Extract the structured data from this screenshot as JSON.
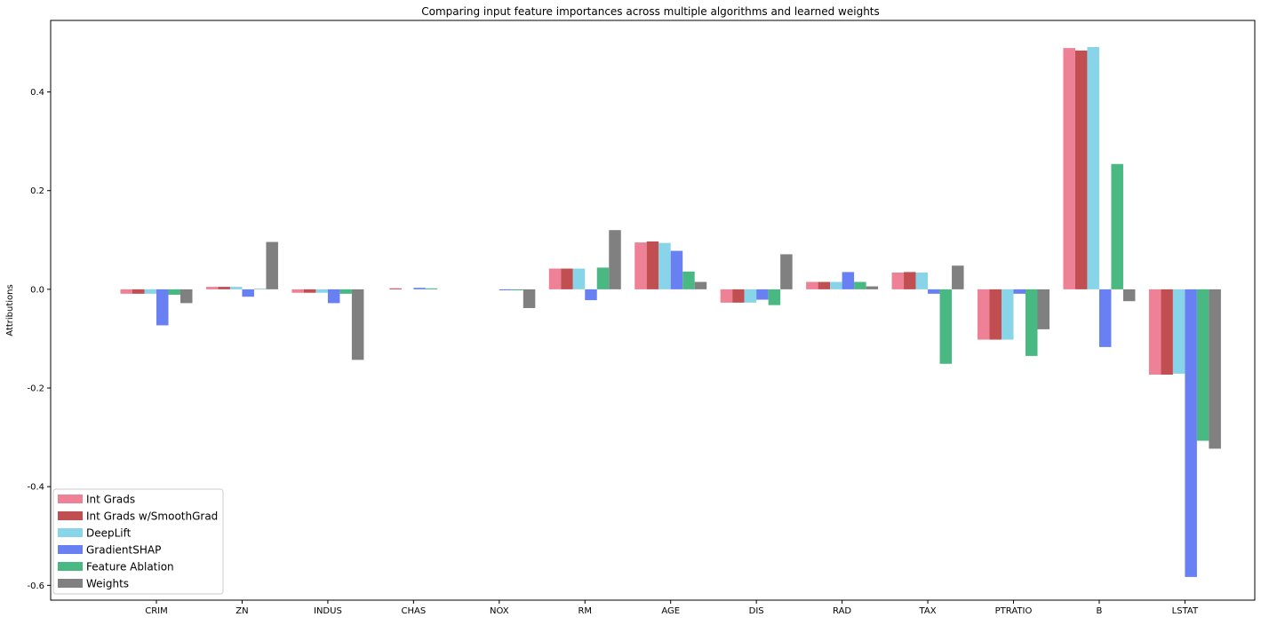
{
  "chart_data": {
    "type": "bar",
    "title": "Comparing input feature importances across multiple algorithms and learned weights",
    "xlabel": "",
    "ylabel": "Attributions",
    "ylim": [
      -0.63,
      0.545
    ],
    "yticks": [
      -0.6,
      -0.4,
      -0.2,
      0.0,
      0.2,
      0.4
    ],
    "ytick_labels": [
      "-0.6",
      "-0.4",
      "-0.2",
      "0.0",
      "0.2",
      "0.4"
    ],
    "categories": [
      "CRIM",
      "ZN",
      "INDUS",
      "CHAS",
      "NOX",
      "RM",
      "AGE",
      "DIS",
      "RAD",
      "TAX",
      "PTRATIO",
      "B",
      "LSTAT"
    ],
    "legend_position": "lower-left",
    "grid": false,
    "series": [
      {
        "name": "Int Grads",
        "color": "#ee8195",
        "values": [
          -0.009,
          0.005,
          -0.007,
          0.0,
          0.0,
          0.042,
          0.095,
          -0.027,
          0.015,
          0.034,
          -0.102,
          0.489,
          -0.173
        ]
      },
      {
        "name": "Int Grads w/SmoothGrad",
        "color": "#c14f51",
        "values": [
          -0.009,
          0.005,
          -0.007,
          0.002,
          0.0,
          0.042,
          0.097,
          -0.027,
          0.015,
          0.035,
          -0.102,
          0.484,
          -0.173
        ]
      },
      {
        "name": "DeepLift",
        "color": "#88d5ea",
        "values": [
          -0.009,
          0.005,
          -0.007,
          0.0,
          0.0,
          0.042,
          0.094,
          -0.027,
          0.015,
          0.034,
          -0.102,
          0.491,
          -0.171
        ]
      },
      {
        "name": "GradientSHAP",
        "color": "#6980f2",
        "values": [
          -0.073,
          -0.015,
          -0.028,
          0.003,
          -0.002,
          -0.022,
          0.078,
          -0.021,
          0.035,
          -0.009,
          -0.009,
          -0.117,
          -0.583
        ]
      },
      {
        "name": "Feature Ablation",
        "color": "#4ab882",
        "values": [
          -0.011,
          0.001,
          -0.009,
          0.002,
          -0.002,
          0.044,
          0.036,
          -0.032,
          0.015,
          -0.151,
          -0.135,
          0.254,
          -0.307
        ]
      },
      {
        "name": "Weights",
        "color": "#808080",
        "values": [
          -0.028,
          0.096,
          -0.143,
          0.0,
          -0.038,
          0.12,
          0.015,
          0.071,
          0.006,
          0.048,
          -0.081,
          -0.024,
          -0.323
        ]
      }
    ]
  }
}
